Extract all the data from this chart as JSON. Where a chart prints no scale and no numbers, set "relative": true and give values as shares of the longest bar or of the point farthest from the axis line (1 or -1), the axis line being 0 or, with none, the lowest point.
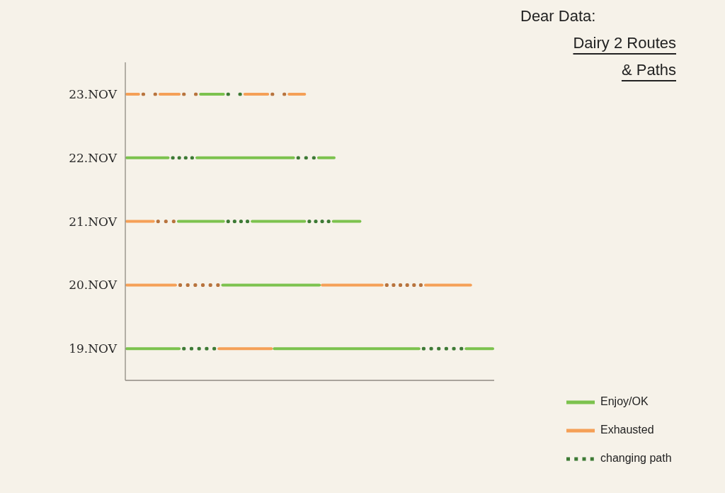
{
  "chart_data": {
    "type": "bar",
    "orientation": "horizontal",
    "stacked": true,
    "relative": true,
    "title": "Dear Data:",
    "subtitle": "Dairy 2 Routes & Paths",
    "tick_labels": "y",
    "legend": "bottom right",
    "categories": [
      "23.NOV",
      "22.NOV",
      "21.NOV",
      "20.NOV",
      "19.NOV"
    ],
    "series": [
      {
        "name": "Enjoy/OK",
        "color": "#7cc24e",
        "line_style": "solid",
        "values": [
          null,
          0.12,
          null,
          null,
          0.15
        ]
      },
      {
        "name": "Exhausted",
        "color": "#f5a057",
        "line_style": "solid",
        "values": [
          0.04,
          null,
          0.08,
          0.14,
          null
        ]
      },
      {
        "line_style": "dotted",
        "colors": [
          "#b8743e",
          "#3d7a35",
          "#b8743e",
          "#b8743e",
          "#3d7a35"
        ],
        "values": [
          0.05,
          0.07,
          0.06,
          0.12,
          0.1
        ]
      },
      {
        "color": "#7cc24e",
        "line_style": "solid",
        "values": [
          null,
          0.27,
          0.13,
          0.27,
          null
        ]
      },
      {
        "color": "#f5a057",
        "line_style": "solid",
        "values": [
          0.06,
          null,
          null,
          0.17,
          0.15
        ]
      },
      {
        "line_style": "dotted",
        "colors": [
          "#b8743e",
          "#3d7a35",
          "#3d7a35",
          "#b8743e",
          null
        ],
        "values": [
          0.05,
          0.06,
          0.07,
          0.11,
          null
        ]
      },
      {
        "color": "#7cc24e",
        "line_style": "solid",
        "values": [
          0.07,
          0.05,
          0.15,
          null,
          0.4
        ]
      },
      {
        "color": "#f5a057",
        "line_style": "solid",
        "values": [
          null,
          null,
          null,
          0.13,
          null
        ]
      },
      {
        "name": "changing path",
        "color": "#3d7a35",
        "line_style": "dotted",
        "values": [
          0.05,
          null,
          0.07,
          null,
          0.12
        ]
      },
      {
        "color": "#7cc24e",
        "line_style": "solid",
        "values": [
          null,
          null,
          0.08,
          null,
          0.08
        ]
      },
      {
        "color": "#f5a057",
        "line_style": "solid",
        "values": [
          0.07,
          null,
          null,
          null,
          null
        ]
      },
      {
        "line_style": "dotted",
        "colors": [
          "#b8743e",
          null,
          null,
          null,
          null
        ],
        "values": [
          0.05,
          null,
          null,
          null,
          null
        ]
      },
      {
        "color": "#f5a057",
        "line_style": "solid",
        "values": [
          0.05,
          null,
          null,
          null,
          null
        ]
      }
    ]
  }
}
